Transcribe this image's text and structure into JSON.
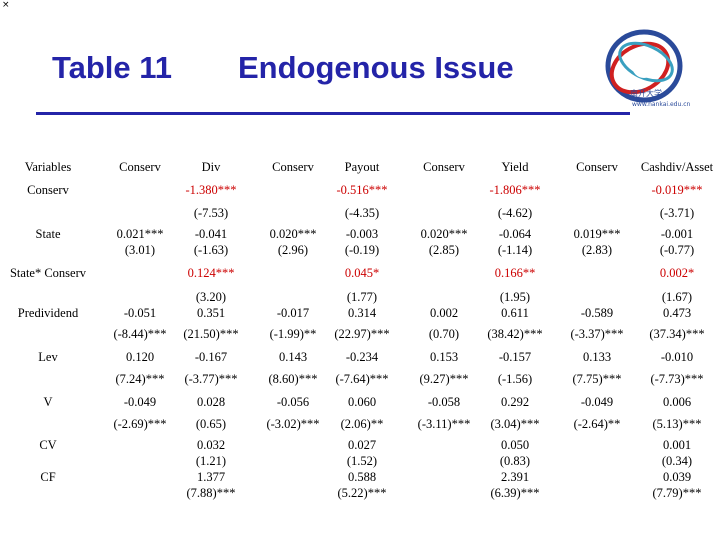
{
  "corner": "×",
  "title": {
    "left": "Table 11",
    "right": "Endogenous Issue"
  },
  "logo": {
    "cn_text": "南开大学",
    "en_text": "www.nankai.edu.cn",
    "colors": {
      "blue": "#2a4a9a",
      "red": "#d02020",
      "teal": "#3aa0c0"
    }
  },
  "table": {
    "headers": [
      "Variables",
      "Conserv",
      "Div",
      "Conserv",
      "Payout",
      "Conserv",
      "Yield",
      "Conserv",
      "Cashdiv/Asset"
    ],
    "row_labels": [
      "Conserv",
      "State",
      "State* Conserv",
      "Predividend",
      "Lev",
      "V",
      "CV",
      "CF"
    ],
    "columns": [
      {
        "name": "Conserv",
        "cells": [
          "0.021***",
          "(3.01)",
          "-0.051",
          "(-8.44)***",
          "0.120",
          "(7.24)***",
          "-0.049",
          "(-2.69)***"
        ]
      },
      {
        "name": "Div",
        "cells": [
          "-1.380***",
          "(-7.53)",
          "-0.041",
          "(-1.63)",
          "0.124***",
          "(3.20)",
          "0.351",
          "(21.50)***",
          "-0.167",
          "(-3.77)***",
          "0.028",
          "(0.65)",
          "0.032",
          "(1.21)",
          "1.377",
          "(7.88)***"
        ]
      },
      {
        "name": "Conserv",
        "cells": [
          "0.020***",
          "(2.96)",
          "-0.017",
          "(-1.99)**",
          "0.143",
          "(8.60)***",
          "-0.056",
          "(-3.02)***"
        ]
      },
      {
        "name": "Payout",
        "cells": [
          "-0.516***",
          "(-4.35)",
          "-0.003",
          "(-0.19)",
          "0.045*",
          "(1.77)",
          "0.314",
          "(22.97)***",
          "-0.234",
          "(-7.64)***",
          "0.060",
          "(2.06)**",
          "0.027",
          "(1.52)",
          "0.588",
          "(5.22)***"
        ]
      },
      {
        "name": "Conserv",
        "cells": [
          "0.020***",
          "(2.85)",
          "0.002",
          "(0.70)",
          "0.153",
          "(9.27)***",
          "-0.058",
          "(-3.11)***"
        ]
      },
      {
        "name": "Yield",
        "cells": [
          "-1.806***",
          "(-4.62)",
          "-0.064",
          "(-1.14)",
          "0.166**",
          "(1.95)",
          "0.611",
          "(38.42)***",
          "-0.157",
          "(-1.56)",
          "0.292",
          "(3.04)***",
          "0.050",
          "(0.83)",
          "2.391",
          "(6.39)***"
        ]
      },
      {
        "name": "Conserv",
        "cells": [
          "0.019***",
          "(2.83)",
          "-0.589",
          "(-3.37)***",
          "0.133",
          "(7.75)***",
          "-0.049",
          "(-2.64)**"
        ]
      },
      {
        "name": "Cashdiv/Asset",
        "cells": [
          "-0.019***",
          "(-3.71)",
          "-0.001",
          "(-0.77)",
          "0.002*",
          "(1.67)",
          "0.473",
          "(37.34)***",
          "-0.010",
          "(-7.73)***",
          "0.006",
          "(5.13)***",
          "0.001",
          "(0.34)",
          "0.039",
          "(7.79)***"
        ]
      }
    ],
    "highlight_color": "#cc0000"
  }
}
